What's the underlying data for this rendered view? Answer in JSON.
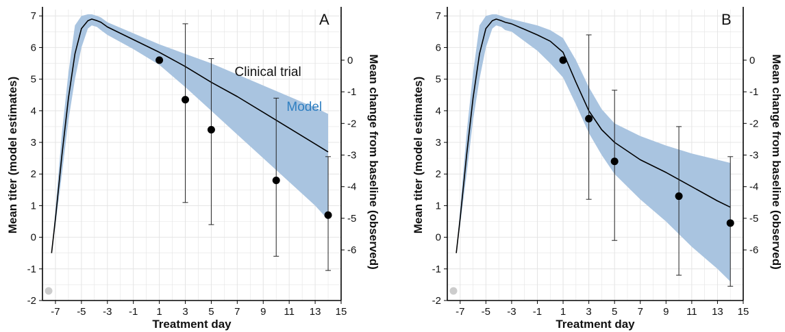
{
  "colors": {
    "band": "#a9c4e0",
    "line": "#000000",
    "grid": "#e4e4e4",
    "marker": "#000000",
    "model_text": "#2f7fc1",
    "corner_dot": "#cccccc"
  },
  "chart_data": [
    {
      "type": "line",
      "panel_label": "A",
      "xlabel": "Treatment day",
      "ylabel_left": "Mean titer (model estimates)",
      "ylabel_right": "Mean change from baseline (observed)",
      "xlim": [
        -8,
        15
      ],
      "ylim_left": [
        -2,
        7.2
      ],
      "ylim_right": [
        -7.6,
        1.6
      ],
      "xticks": [
        -7,
        -5,
        -3,
        -1,
        1,
        3,
        5,
        7,
        9,
        11,
        13,
        15
      ],
      "yticks_left": [
        -2,
        -1,
        0,
        1,
        2,
        3,
        4,
        5,
        6,
        7
      ],
      "yticks_right": [
        0,
        -1,
        -2,
        -3,
        -4,
        -5,
        -6
      ],
      "grid": true,
      "annotations": [
        "Clinical trial",
        "Model"
      ],
      "model_mean": {
        "x": [
          -7.3,
          -7,
          -6.5,
          -6,
          -5.5,
          -5,
          -4.5,
          -4.2,
          -3.8,
          -3.5,
          -3,
          -1,
          1,
          3,
          5,
          7,
          9,
          11,
          13,
          14
        ],
        "y": [
          -0.5,
          0.6,
          2.6,
          4.4,
          5.8,
          6.6,
          6.85,
          6.9,
          6.85,
          6.8,
          6.65,
          6.25,
          5.85,
          5.4,
          4.9,
          4.45,
          3.95,
          3.45,
          2.95,
          2.7
        ]
      },
      "model_band": {
        "x": [
          -7.3,
          -7,
          -6.5,
          -6,
          -5.5,
          -5,
          -4.5,
          -4.2,
          -3.8,
          -3.5,
          -3,
          -1,
          1,
          3,
          5,
          7,
          9,
          11,
          13,
          14
        ],
        "upper": [
          -0.5,
          0.9,
          3.3,
          5.2,
          6.7,
          7.0,
          7.05,
          7.05,
          7.0,
          6.95,
          6.8,
          6.45,
          6.1,
          5.8,
          5.5,
          5.15,
          4.8,
          4.45,
          4.1,
          3.9
        ],
        "lower": [
          -0.5,
          0.4,
          2.0,
          3.7,
          5.0,
          6.0,
          6.6,
          6.7,
          6.65,
          6.55,
          6.4,
          5.95,
          5.45,
          4.75,
          4.0,
          3.25,
          2.5,
          1.75,
          1.0,
          0.55
        ]
      },
      "observed": {
        "x": [
          1,
          3,
          5,
          10,
          14
        ],
        "y": [
          0,
          -1.25,
          -2.2,
          -3.8,
          -4.9
        ],
        "err_low": [
          null,
          -4.5,
          -5.2,
          -6.2,
          -6.65
        ],
        "err_high": [
          null,
          1.15,
          0.05,
          -1.2,
          -3.05
        ]
      }
    },
    {
      "type": "line",
      "panel_label": "B",
      "xlabel": "Treatment day",
      "ylabel_left": "Mean titer (model estimates)",
      "ylabel_right": "Mean change from baseline (observed)",
      "xlim": [
        -8,
        15
      ],
      "ylim_left": [
        -2,
        7.2
      ],
      "ylim_right": [
        -7.6,
        1.6
      ],
      "xticks": [
        -7,
        -5,
        -3,
        -1,
        1,
        3,
        5,
        7,
        9,
        11,
        13,
        15
      ],
      "yticks_left": [
        -2,
        -1,
        0,
        1,
        2,
        3,
        4,
        5,
        6,
        7
      ],
      "yticks_right": [
        0,
        -1,
        -2,
        -3,
        -4,
        -5,
        -6
      ],
      "grid": true,
      "annotations": [],
      "model_mean": {
        "x": [
          -7.3,
          -7,
          -6.5,
          -6,
          -5.5,
          -5,
          -4.5,
          -4.2,
          -3.8,
          -3.5,
          -3,
          -1,
          0,
          1,
          2,
          3,
          4,
          5,
          7,
          9,
          11,
          13,
          14
        ],
        "y": [
          -0.5,
          0.6,
          2.6,
          4.4,
          5.8,
          6.6,
          6.85,
          6.9,
          6.85,
          6.8,
          6.75,
          6.4,
          6.2,
          5.85,
          4.9,
          4.0,
          3.4,
          3.0,
          2.45,
          2.05,
          1.6,
          1.15,
          0.95
        ]
      },
      "model_band": {
        "x": [
          -7.3,
          -7,
          -6.5,
          -6,
          -5.5,
          -5,
          -4.5,
          -4.2,
          -3.8,
          -3.5,
          -3,
          -1,
          0,
          1,
          2,
          3,
          4,
          5,
          7,
          9,
          11,
          13,
          14
        ],
        "upper": [
          -0.5,
          0.9,
          3.3,
          5.2,
          6.7,
          7.0,
          7.05,
          7.05,
          7.0,
          6.95,
          6.9,
          6.7,
          6.55,
          6.3,
          5.6,
          4.75,
          4.05,
          3.6,
          3.2,
          2.9,
          2.65,
          2.45,
          2.35
        ],
        "lower": [
          -0.5,
          0.4,
          2.0,
          3.7,
          5.0,
          6.0,
          6.6,
          6.7,
          6.65,
          6.55,
          6.5,
          5.9,
          5.5,
          5.05,
          4.2,
          3.3,
          2.6,
          2.0,
          1.2,
          0.5,
          -0.3,
          -1.0,
          -1.4
        ]
      },
      "observed": {
        "x": [
          1,
          3,
          5,
          10,
          14
        ],
        "y": [
          0,
          -1.85,
          -3.2,
          -4.3,
          -5.15
        ],
        "err_low": [
          null,
          -4.4,
          -5.7,
          -6.8,
          -7.15
        ],
        "err_high": [
          null,
          0.8,
          -0.95,
          -2.1,
          -3.05
        ]
      }
    }
  ]
}
